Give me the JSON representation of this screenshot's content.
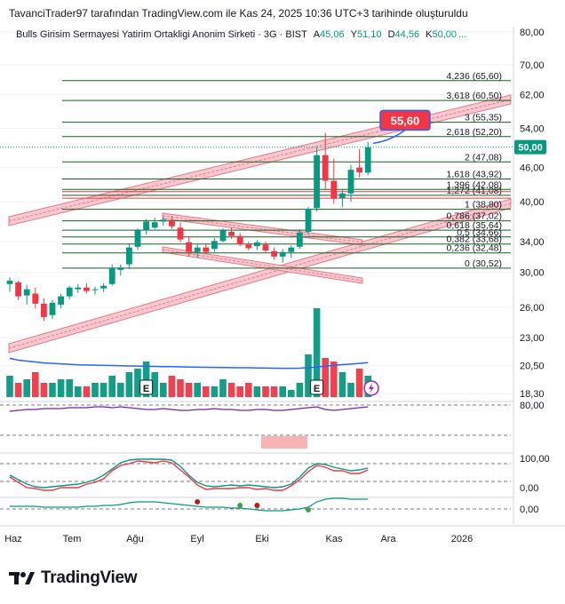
{
  "header": {
    "attribution": "TavanciTrader97 tarafından TradingView.com ile Kas 24, 2025 10:36 UTC+3 tarihinde oluşturuldu"
  },
  "legend": {
    "symbol": "Bulls Girisim Sermayesi Yatirim Ortakligi Anonim Sirketi · 3G · BIST",
    "open_label": "A",
    "open": "45,06",
    "high_label": "Y",
    "high": "51,10",
    "low_label": "D",
    "low": "44,56",
    "close_label": "K",
    "close": "50,00",
    "more": "..."
  },
  "branding": {
    "wordmark": "TradingView",
    "logo_icon": "tradingview-logo-icon"
  },
  "colors": {
    "up": "#089981",
    "down": "#f23645",
    "fib": "#1b5e20",
    "channel": "#e8788a",
    "ma": "#2962ff",
    "last_price": "#089981",
    "target": "#f23645"
  },
  "chart_data": {
    "type": "candlestick",
    "scale": "log",
    "price_axis_ticks": [
      "80,00",
      "70,00",
      "62,00",
      "54,00",
      "46,00",
      "40,00",
      "34,00",
      "30,00",
      "26,00",
      "23,00",
      "20,50",
      "18,30"
    ],
    "time_axis_ticks": [
      "Haz",
      "Tem",
      "Ağu",
      "Eyl",
      "Eki",
      "Kas",
      "Ara",
      "2026"
    ],
    "last_price": {
      "value": 50.0,
      "label": "50,00"
    },
    "target": {
      "value": 55.6,
      "label": "55,60"
    },
    "fib_levels": [
      {
        "ratio": "4,236",
        "price": 65.6,
        "label": "4,236 (65,60)"
      },
      {
        "ratio": "3,618",
        "price": 60.5,
        "label": "3,618 (60,50)"
      },
      {
        "ratio": "3",
        "price": 55.35,
        "label": "3 (55,35)"
      },
      {
        "ratio": "2,618",
        "price": 52.2,
        "label": "2,618 (52,20)"
      },
      {
        "ratio": "2",
        "price": 47.08,
        "label": "2 (47,08)"
      },
      {
        "ratio": "1,618",
        "price": 43.92,
        "label": "1,618 (43,92)"
      },
      {
        "ratio": "1,396",
        "price": 42.08,
        "label": "1,396 (42,08)"
      },
      {
        "ratio": "1,272",
        "price": 41.08,
        "label": "1,272 (41,08)"
      },
      {
        "ratio": "1",
        "price": 38.8,
        "label": "1 (38,80)"
      },
      {
        "ratio": "0,786",
        "price": 37.02,
        "label": "0,786 (37,02)"
      },
      {
        "ratio": "0,618",
        "price": 35.64,
        "label": "0,618 (35,64)"
      },
      {
        "ratio": "0,5",
        "price": 34.66,
        "label": "0,5 (34,66)"
      },
      {
        "ratio": "0,382",
        "price": 33.68,
        "label": "0,382 (33,68)"
      },
      {
        "ratio": "0,236",
        "price": 32.48,
        "label": "0,236 (32,48)"
      },
      {
        "ratio": "0",
        "price": 30.52,
        "label": "0 (30,52)"
      }
    ],
    "candles": [
      {
        "o": 28.6,
        "h": 29.4,
        "l": 27.7,
        "c": 29.0
      },
      {
        "o": 28.8,
        "h": 29.0,
        "l": 26.8,
        "c": 27.2
      },
      {
        "o": 27.3,
        "h": 28.5,
        "l": 26.3,
        "c": 28.0
      },
      {
        "o": 27.5,
        "h": 28.2,
        "l": 25.9,
        "c": 26.4
      },
      {
        "o": 26.4,
        "h": 27.0,
        "l": 24.6,
        "c": 25.0
      },
      {
        "o": 25.2,
        "h": 26.8,
        "l": 24.8,
        "c": 26.5
      },
      {
        "o": 26.3,
        "h": 27.5,
        "l": 25.9,
        "c": 27.2
      },
      {
        "o": 27.2,
        "h": 28.4,
        "l": 26.9,
        "c": 28.2
      },
      {
        "o": 28.0,
        "h": 28.6,
        "l": 27.6,
        "c": 28.2
      },
      {
        "o": 28.2,
        "h": 28.7,
        "l": 27.5,
        "c": 27.8
      },
      {
        "o": 27.9,
        "h": 28.3,
        "l": 27.4,
        "c": 28.0
      },
      {
        "o": 28.1,
        "h": 28.7,
        "l": 27.7,
        "c": 28.4
      },
      {
        "o": 28.6,
        "h": 31.0,
        "l": 28.4,
        "c": 30.5
      },
      {
        "o": 30.3,
        "h": 31.0,
        "l": 29.6,
        "c": 30.6
      },
      {
        "o": 31.0,
        "h": 33.8,
        "l": 30.4,
        "c": 33.2
      },
      {
        "o": 33.3,
        "h": 35.9,
        "l": 32.9,
        "c": 35.6
      },
      {
        "o": 35.6,
        "h": 37.3,
        "l": 35.0,
        "c": 36.9
      },
      {
        "o": 36.0,
        "h": 37.5,
        "l": 35.8,
        "c": 36.8
      },
      {
        "o": 36.9,
        "h": 37.6,
        "l": 36.3,
        "c": 37.2
      },
      {
        "o": 37.0,
        "h": 37.8,
        "l": 35.8,
        "c": 36.2
      },
      {
        "o": 36.0,
        "h": 36.8,
        "l": 33.9,
        "c": 34.3
      },
      {
        "o": 33.9,
        "h": 34.8,
        "l": 32.0,
        "c": 32.6
      },
      {
        "o": 32.6,
        "h": 33.6,
        "l": 31.8,
        "c": 33.2
      },
      {
        "o": 33.2,
        "h": 33.8,
        "l": 32.3,
        "c": 32.6
      },
      {
        "o": 33.0,
        "h": 34.5,
        "l": 32.6,
        "c": 34.1
      },
      {
        "o": 34.1,
        "h": 35.9,
        "l": 33.9,
        "c": 35.6
      },
      {
        "o": 35.4,
        "h": 36.0,
        "l": 34.4,
        "c": 34.8
      },
      {
        "o": 34.8,
        "h": 35.2,
        "l": 33.4,
        "c": 33.6
      },
      {
        "o": 33.6,
        "h": 34.0,
        "l": 32.8,
        "c": 33.1
      },
      {
        "o": 33.4,
        "h": 34.2,
        "l": 32.9,
        "c": 33.9
      },
      {
        "o": 33.6,
        "h": 34.0,
        "l": 32.5,
        "c": 32.8
      },
      {
        "o": 32.7,
        "h": 33.2,
        "l": 31.6,
        "c": 32.0
      },
      {
        "o": 32.0,
        "h": 33.0,
        "l": 31.2,
        "c": 32.6
      },
      {
        "o": 32.6,
        "h": 33.5,
        "l": 31.8,
        "c": 33.2
      },
      {
        "o": 33.3,
        "h": 35.8,
        "l": 33.0,
        "c": 35.3
      },
      {
        "o": 35.4,
        "h": 39.2,
        "l": 35.0,
        "c": 38.9
      },
      {
        "o": 39.0,
        "h": 49.9,
        "l": 38.5,
        "c": 48.4
      },
      {
        "o": 48.4,
        "h": 53.0,
        "l": 42.0,
        "c": 43.6
      },
      {
        "o": 43.6,
        "h": 47.7,
        "l": 39.7,
        "c": 40.5
      },
      {
        "o": 40.6,
        "h": 42.2,
        "l": 39.2,
        "c": 41.4
      },
      {
        "o": 41.4,
        "h": 46.5,
        "l": 40.0,
        "c": 45.6
      },
      {
        "o": 46.0,
        "h": 49.6,
        "l": 44.2,
        "c": 45.1
      },
      {
        "o": 45.06,
        "h": 51.1,
        "l": 44.56,
        "c": 50.0
      }
    ],
    "volume": [
      6,
      4,
      5,
      7,
      4,
      4,
      5,
      5,
      3,
      3,
      4,
      4,
      6,
      4,
      7,
      8,
      10,
      7,
      4,
      6,
      5,
      4,
      4,
      3,
      3,
      5,
      4,
      3,
      4,
      3,
      3,
      3,
      3,
      2,
      4,
      12,
      25,
      11,
      10,
      7,
      4,
      8,
      6
    ],
    "ma_line": [
      33,
      31,
      30,
      29,
      28,
      27.5,
      27,
      26.5,
      26,
      25.8,
      25.6,
      25.4,
      25.2,
      25,
      24.8,
      24.6,
      24.4,
      24.3,
      24.1,
      24,
      23.8,
      23.6,
      23.5,
      23.3,
      23.2,
      23.1,
      23,
      22.9,
      22.8,
      22.6,
      22.5,
      22.4,
      22.3,
      22.3,
      22.4,
      22.8,
      23.6,
      24.6,
      25.4,
      26.2,
      26.8,
      27.5,
      28.3
    ],
    "indicators": [
      {
        "name": "rsi",
        "ticks": [
          "80,00"
        ]
      },
      {
        "name": "stoch",
        "ticks": [
          "100,00",
          "0,00"
        ]
      },
      {
        "name": "macd",
        "ticks": [
          "0,00"
        ]
      }
    ]
  }
}
